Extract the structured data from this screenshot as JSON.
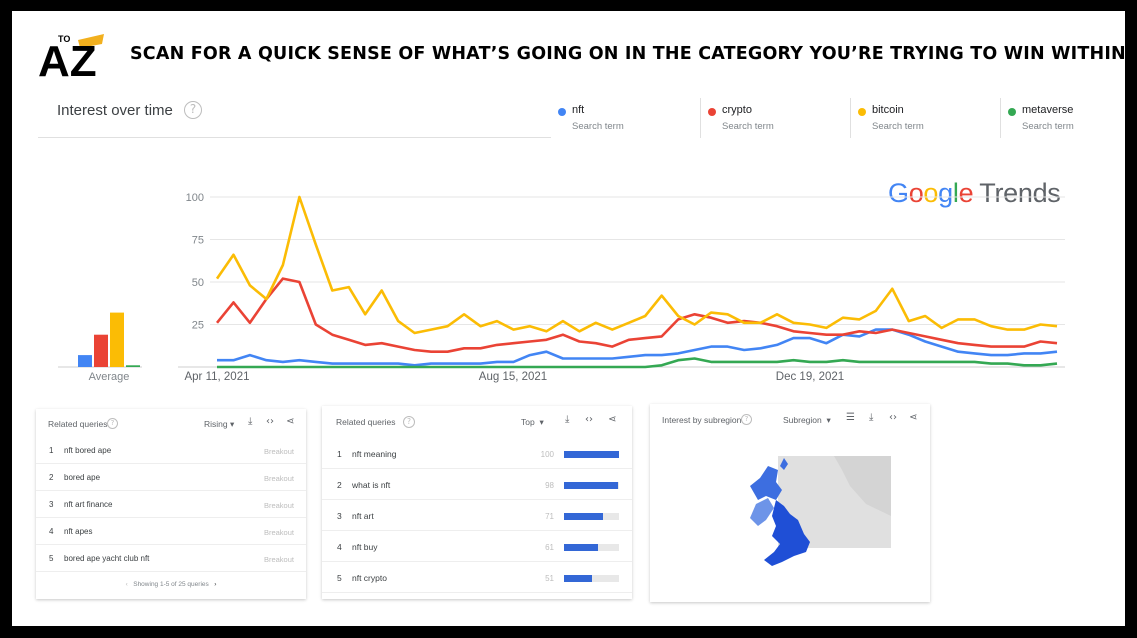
{
  "headline": "SCAN FOR A QUICK SENSE OF WHAT’S GOING ON IN THE CATEGORY YOU’RE TRYING TO WIN WITHIN",
  "logo": {
    "small_text": "TO",
    "big_letters": "AZ"
  },
  "interest_over_time": {
    "title": "Interest over time",
    "help": "?"
  },
  "search_terms": [
    {
      "name": "nft",
      "sub": "Search term",
      "color": "#4285f4"
    },
    {
      "name": "crypto",
      "sub": "Search term",
      "color": "#ea4335"
    },
    {
      "name": "bitcoin",
      "sub": "Search term",
      "color": "#fbbc05"
    },
    {
      "name": "metaverse",
      "sub": "Search term",
      "color": "#34a853"
    }
  ],
  "brand": {
    "google": [
      "G",
      "o",
      "o",
      "g",
      "l",
      "e"
    ],
    "trends": "Trends"
  },
  "chart_data": {
    "type": "line",
    "x_labels": [
      "Apr 11, 2021",
      "Aug 15, 2021",
      "Dec 19, 2021"
    ],
    "y_ticks": [
      "100",
      "75",
      "50",
      "25"
    ],
    "ylim": [
      0,
      100
    ],
    "grid": true,
    "average_label": "Average",
    "averages": [
      {
        "name": "nft",
        "value": 7,
        "color": "#4285f4"
      },
      {
        "name": "crypto",
        "value": 19,
        "color": "#ea4335"
      },
      {
        "name": "bitcoin",
        "value": 32,
        "color": "#fbbc05"
      },
      {
        "name": "metaverse",
        "value": 1,
        "color": "#34a853"
      }
    ],
    "series": [
      {
        "name": "nft",
        "color": "#4285f4",
        "values": [
          4,
          4,
          7,
          4,
          3,
          4,
          3,
          2,
          2,
          2,
          2,
          2,
          1,
          2,
          2,
          2,
          2,
          3,
          3,
          7,
          9,
          5,
          5,
          5,
          5,
          6,
          7,
          7,
          8,
          10,
          12,
          12,
          10,
          11,
          13,
          17,
          17,
          14,
          19,
          18,
          22,
          22,
          19,
          15,
          12,
          9,
          8,
          7,
          7,
          8,
          8,
          9
        ]
      },
      {
        "name": "crypto",
        "color": "#ea4335",
        "values": [
          26,
          38,
          26,
          40,
          52,
          50,
          25,
          19,
          16,
          13,
          14,
          12,
          10,
          9,
          9,
          11,
          11,
          13,
          14,
          15,
          16,
          19,
          15,
          14,
          12,
          16,
          17,
          18,
          28,
          31,
          29,
          26,
          27,
          26,
          24,
          21,
          20,
          19,
          19,
          21,
          20,
          22,
          20,
          18,
          16,
          14,
          13,
          12,
          12,
          12,
          15,
          14
        ]
      },
      {
        "name": "bitcoin",
        "color": "#fbbc05",
        "values": [
          52,
          66,
          48,
          40,
          60,
          100,
          72,
          45,
          47,
          31,
          45,
          27,
          20,
          22,
          24,
          31,
          24,
          27,
          22,
          24,
          21,
          27,
          21,
          26,
          22,
          26,
          30,
          42,
          30,
          25,
          32,
          31,
          26,
          26,
          31,
          26,
          25,
          23,
          29,
          28,
          33,
          46,
          27,
          30,
          23,
          28,
          28,
          24,
          22,
          22,
          25,
          24
        ]
      },
      {
        "name": "metaverse",
        "color": "#34a853",
        "values": [
          0,
          0,
          0,
          0,
          0,
          0,
          0,
          0,
          0,
          0,
          0,
          0,
          0,
          0,
          0,
          0,
          0,
          0,
          0,
          0,
          0,
          0,
          0,
          0,
          0,
          0,
          0,
          1,
          4,
          5,
          3,
          3,
          3,
          3,
          3,
          4,
          3,
          3,
          4,
          3,
          3,
          3,
          3,
          3,
          3,
          3,
          3,
          2,
          2,
          1,
          1,
          2
        ]
      }
    ]
  },
  "related_queries_rising": {
    "title": "Related queries",
    "filter": "Rising",
    "rows": [
      {
        "num": "1",
        "query": "nft bored ape",
        "value": "Breakout"
      },
      {
        "num": "2",
        "query": "bored ape",
        "value": "Breakout"
      },
      {
        "num": "3",
        "query": "nft art finance",
        "value": "Breakout"
      },
      {
        "num": "4",
        "query": "nft apes",
        "value": "Breakout"
      },
      {
        "num": "5",
        "query": "bored ape yacht club nft",
        "value": "Breakout"
      }
    ],
    "pager": "Showing 1-5 of 25 queries"
  },
  "related_queries_top": {
    "title": "Related queries",
    "filter": "Top",
    "rows": [
      {
        "num": "1",
        "query": "nft meaning",
        "value": "100",
        "level": 100
      },
      {
        "num": "2",
        "query": "what is nft",
        "value": "98",
        "level": 98
      },
      {
        "num": "3",
        "query": "nft art",
        "value": "71",
        "level": 71
      },
      {
        "num": "4",
        "query": "nft buy",
        "value": "61",
        "level": 61
      },
      {
        "num": "5",
        "query": "nft crypto",
        "value": "51",
        "level": 51
      }
    ]
  },
  "interest_by_subregion": {
    "title": "Interest by subregion",
    "filter": "Subregion"
  },
  "icons": [
    "help-icon",
    "download-icon",
    "embed-icon",
    "share-icon",
    "list-icon",
    "dropdown-arrow-icon",
    "chevron-left-icon",
    "chevron-right-icon"
  ]
}
